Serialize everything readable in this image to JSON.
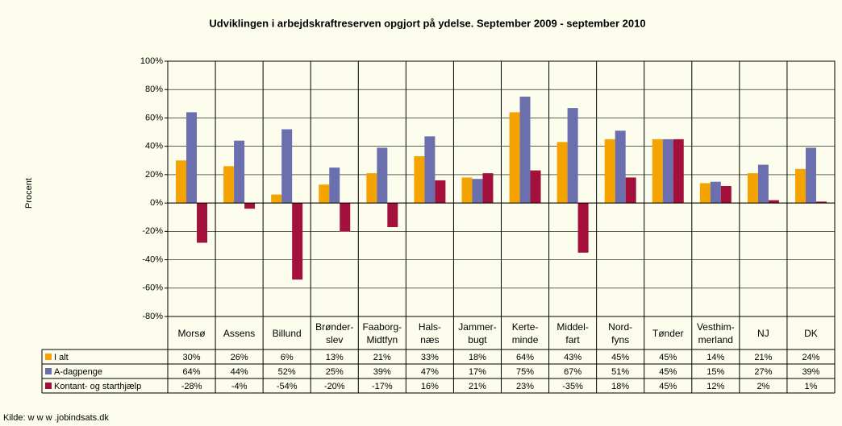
{
  "chart_data": {
    "type": "bar",
    "title": "Udviklingen i arbejdskraftreserven opgjort på ydelse. September 2009 - september 2010",
    "y_label": "Procent",
    "source": "Kilde: w w w .jobindsats.dk",
    "categories": [
      "Morsø",
      "Assens",
      "Billund",
      "Brønder-\nslev",
      "Faaborg-\nMidtfyn",
      "Hals-\nnæs",
      "Jammer-\nbugt",
      "Kerte-\nminde",
      "Middel-\nfart",
      "Nord-\nfyns",
      "Tønder",
      "Vesthim-\nmerland",
      "NJ",
      "DK"
    ],
    "series": [
      {
        "name": "I alt",
        "color": "#f5a300",
        "values": [
          30,
          26,
          6,
          13,
          21,
          33,
          18,
          64,
          43,
          45,
          45,
          14,
          21,
          24
        ],
        "value_labels": [
          "30%",
          "26%",
          "6%",
          "13%",
          "21%",
          "33%",
          "18%",
          "64%",
          "43%",
          "45%",
          "45%",
          "14%",
          "21%",
          "24%"
        ]
      },
      {
        "name": "A-dagpenge",
        "color": "#6b6fae",
        "values": [
          64,
          44,
          52,
          25,
          39,
          47,
          17,
          75,
          67,
          51,
          45,
          15,
          27,
          39
        ],
        "value_labels": [
          "64%",
          "44%",
          "52%",
          "25%",
          "39%",
          "47%",
          "17%",
          "75%",
          "67%",
          "51%",
          "45%",
          "15%",
          "27%",
          "39%"
        ]
      },
      {
        "name": "Kontant- og starthjælp",
        "color": "#a3103c",
        "values": [
          -28,
          -4,
          -54,
          -20,
          -17,
          16,
          21,
          23,
          -35,
          18,
          45,
          12,
          2,
          1
        ],
        "value_labels": [
          "-28%",
          "-4%",
          "-54%",
          "-20%",
          "-17%",
          "16%",
          "21%",
          "23%",
          "-35%",
          "18%",
          "45%",
          "12%",
          "2%",
          "1%"
        ]
      }
    ],
    "ylim": [
      -80,
      100
    ],
    "yticks": [
      {
        "value": -80,
        "label": "-80%"
      },
      {
        "value": -60,
        "label": "-60%"
      },
      {
        "value": -40,
        "label": "-40%"
      },
      {
        "value": -20,
        "label": "-20%"
      },
      {
        "value": 0,
        "label": "0%"
      },
      {
        "value": 20,
        "label": "20%"
      },
      {
        "value": 40,
        "label": "40%"
      },
      {
        "value": 60,
        "label": "60%"
      },
      {
        "value": 80,
        "label": "80%"
      },
      {
        "value": 100,
        "label": "100%"
      }
    ],
    "grid": true
  }
}
